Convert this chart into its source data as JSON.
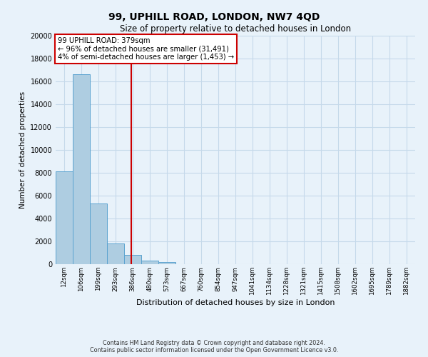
{
  "title": "99, UPHILL ROAD, LONDON, NW7 4QD",
  "subtitle": "Size of property relative to detached houses in London",
  "xlabel": "Distribution of detached houses by size in London",
  "ylabel": "Number of detached properties",
  "bar_labels": [
    "12sqm",
    "106sqm",
    "199sqm",
    "293sqm",
    "386sqm",
    "480sqm",
    "573sqm",
    "667sqm",
    "760sqm",
    "854sqm",
    "947sqm",
    "1041sqm",
    "1134sqm",
    "1228sqm",
    "1321sqm",
    "1415sqm",
    "1508sqm",
    "1602sqm",
    "1695sqm",
    "1789sqm",
    "1882sqm"
  ],
  "bar_values": [
    8100,
    16600,
    5300,
    1800,
    800,
    300,
    200,
    0,
    0,
    0,
    0,
    0,
    0,
    0,
    0,
    0,
    0,
    0,
    0,
    0,
    0
  ],
  "bar_color": "#aecde1",
  "bar_edge_color": "#5ba3d0",
  "vline_color": "#cc0000",
  "ylim": [
    0,
    20000
  ],
  "yticks": [
    0,
    2000,
    4000,
    6000,
    8000,
    10000,
    12000,
    14000,
    16000,
    18000,
    20000
  ],
  "annotation_title": "99 UPHILL ROAD: 379sqm",
  "annotation_line1": "← 96% of detached houses are smaller (31,491)",
  "annotation_line2": "4% of semi-detached houses are larger (1,453) →",
  "annotation_box_color": "#ffffff",
  "annotation_box_edge": "#cc0000",
  "grid_color": "#c5d9ea",
  "background_color": "#e8f2fa",
  "footer_line1": "Contains HM Land Registry data © Crown copyright and database right 2024.",
  "footer_line2": "Contains public sector information licensed under the Open Government Licence v3.0."
}
